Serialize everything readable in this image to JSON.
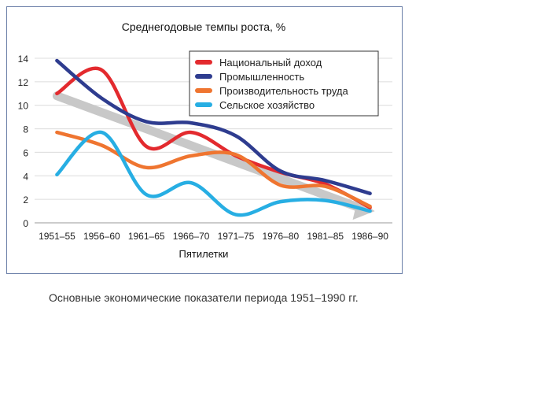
{
  "caption": "Основные экономические показатели периода 1951–1990 гг.",
  "chart_data": {
    "type": "line",
    "title": "Среднегодовые темпы роста, %",
    "xlabel": "Пятилетки",
    "ylabel": "",
    "categories": [
      "1951–55",
      "1956–60",
      "1961–65",
      "1966–70",
      "1971–75",
      "1976–80",
      "1981–85",
      "1986–90"
    ],
    "ylim": [
      0,
      14
    ],
    "yticks": [
      0,
      2,
      4,
      6,
      8,
      10,
      12,
      14
    ],
    "grid": true,
    "legend_position": "top-right",
    "trend": {
      "color": "#c8c8c8",
      "values": [
        10.8,
        9.5,
        8.0,
        6.7,
        5.3,
        3.8,
        2.3,
        1.0
      ]
    },
    "series": [
      {
        "name": "Национальный доход",
        "color": "#e32a2e",
        "values": [
          11.0,
          13.0,
          6.5,
          7.7,
          5.7,
          4.3,
          3.3,
          1.3
        ]
      },
      {
        "name": "Промышленность",
        "color": "#2e3c8f",
        "values": [
          13.8,
          10.6,
          8.6,
          8.5,
          7.4,
          4.4,
          3.6,
          2.5
        ]
      },
      {
        "name": "Производительность труда",
        "color": "#ef7530",
        "values": [
          7.7,
          6.6,
          4.7,
          5.7,
          5.8,
          3.2,
          3.1,
          1.4
        ]
      },
      {
        "name": "Сельское хозяйство",
        "color": "#27aee3",
        "values": [
          4.1,
          7.7,
          2.4,
          3.4,
          0.7,
          1.8,
          1.9,
          1.0
        ]
      }
    ]
  }
}
